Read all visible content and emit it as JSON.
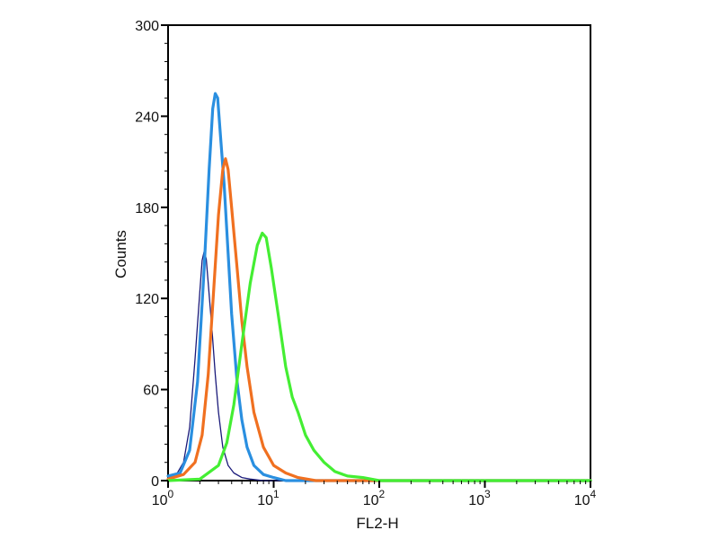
{
  "chart_data": {
    "type": "line",
    "title": "",
    "xlabel": "FL2-H",
    "ylabel": "Counts",
    "x_scale": "log",
    "xlim": [
      1,
      10000
    ],
    "ylim": [
      0,
      300
    ],
    "grid": false,
    "legend": "none",
    "x_ticks": [
      {
        "value": 1,
        "base": "10",
        "exp": "0"
      },
      {
        "value": 10,
        "base": "10",
        "exp": "1"
      },
      {
        "value": 100,
        "base": "10",
        "exp": "2"
      },
      {
        "value": 1000,
        "base": "10",
        "exp": "3"
      },
      {
        "value": 10000,
        "base": "10",
        "exp": "4"
      }
    ],
    "y_ticks": [
      "0",
      "60",
      "120",
      "180",
      "240",
      "300"
    ],
    "series": [
      {
        "color": "#1a1a7a",
        "points": [
          [
            1,
            2
          ],
          [
            1.2,
            4
          ],
          [
            1.4,
            12
          ],
          [
            1.6,
            35
          ],
          [
            1.8,
            80
          ],
          [
            2.0,
            125
          ],
          [
            2.1,
            145
          ],
          [
            2.2,
            151
          ],
          [
            2.3,
            146
          ],
          [
            2.4,
            130
          ],
          [
            2.6,
            100
          ],
          [
            2.8,
            70
          ],
          [
            3.0,
            45
          ],
          [
            3.3,
            22
          ],
          [
            3.7,
            10
          ],
          [
            4.2,
            5
          ],
          [
            5,
            2
          ],
          [
            6,
            1
          ],
          [
            8,
            0
          ],
          [
            10000,
            0
          ]
        ]
      },
      {
        "color": "#2a8fe0",
        "points": [
          [
            1,
            3
          ],
          [
            1.3,
            5
          ],
          [
            1.6,
            20
          ],
          [
            1.9,
            65
          ],
          [
            2.2,
            140
          ],
          [
            2.45,
            205
          ],
          [
            2.65,
            245
          ],
          [
            2.8,
            255
          ],
          [
            2.95,
            252
          ],
          [
            3.1,
            232
          ],
          [
            3.4,
            195
          ],
          [
            3.7,
            150
          ],
          [
            4.0,
            110
          ],
          [
            4.5,
            65
          ],
          [
            5,
            40
          ],
          [
            5.6,
            22
          ],
          [
            6.5,
            10
          ],
          [
            8,
            4
          ],
          [
            10,
            2
          ],
          [
            13,
            0
          ],
          [
            10000,
            0
          ]
        ]
      },
      {
        "color": "#f07020",
        "points": [
          [
            1,
            1
          ],
          [
            1.4,
            4
          ],
          [
            1.8,
            12
          ],
          [
            2.1,
            30
          ],
          [
            2.4,
            70
          ],
          [
            2.7,
            125
          ],
          [
            3.0,
            175
          ],
          [
            3.3,
            205
          ],
          [
            3.5,
            212
          ],
          [
            3.7,
            205
          ],
          [
            4.0,
            180
          ],
          [
            4.5,
            140
          ],
          [
            5,
            105
          ],
          [
            5.6,
            75
          ],
          [
            6.5,
            45
          ],
          [
            8,
            22
          ],
          [
            10,
            10
          ],
          [
            13,
            5
          ],
          [
            17,
            2
          ],
          [
            25,
            0
          ],
          [
            10000,
            0
          ]
        ]
      },
      {
        "color": "#44ee33",
        "points": [
          [
            1,
            0
          ],
          [
            2,
            1
          ],
          [
            3,
            10
          ],
          [
            3.6,
            25
          ],
          [
            4.2,
            50
          ],
          [
            5,
            90
          ],
          [
            6,
            130
          ],
          [
            7,
            155
          ],
          [
            7.8,
            163
          ],
          [
            8.5,
            160
          ],
          [
            9.5,
            140
          ],
          [
            11,
            110
          ],
          [
            13,
            75
          ],
          [
            15,
            55
          ],
          [
            17,
            45
          ],
          [
            20,
            30
          ],
          [
            24,
            20
          ],
          [
            30,
            12
          ],
          [
            38,
            6
          ],
          [
            50,
            3
          ],
          [
            70,
            2
          ],
          [
            100,
            0
          ],
          [
            10000,
            0
          ]
        ]
      }
    ]
  }
}
